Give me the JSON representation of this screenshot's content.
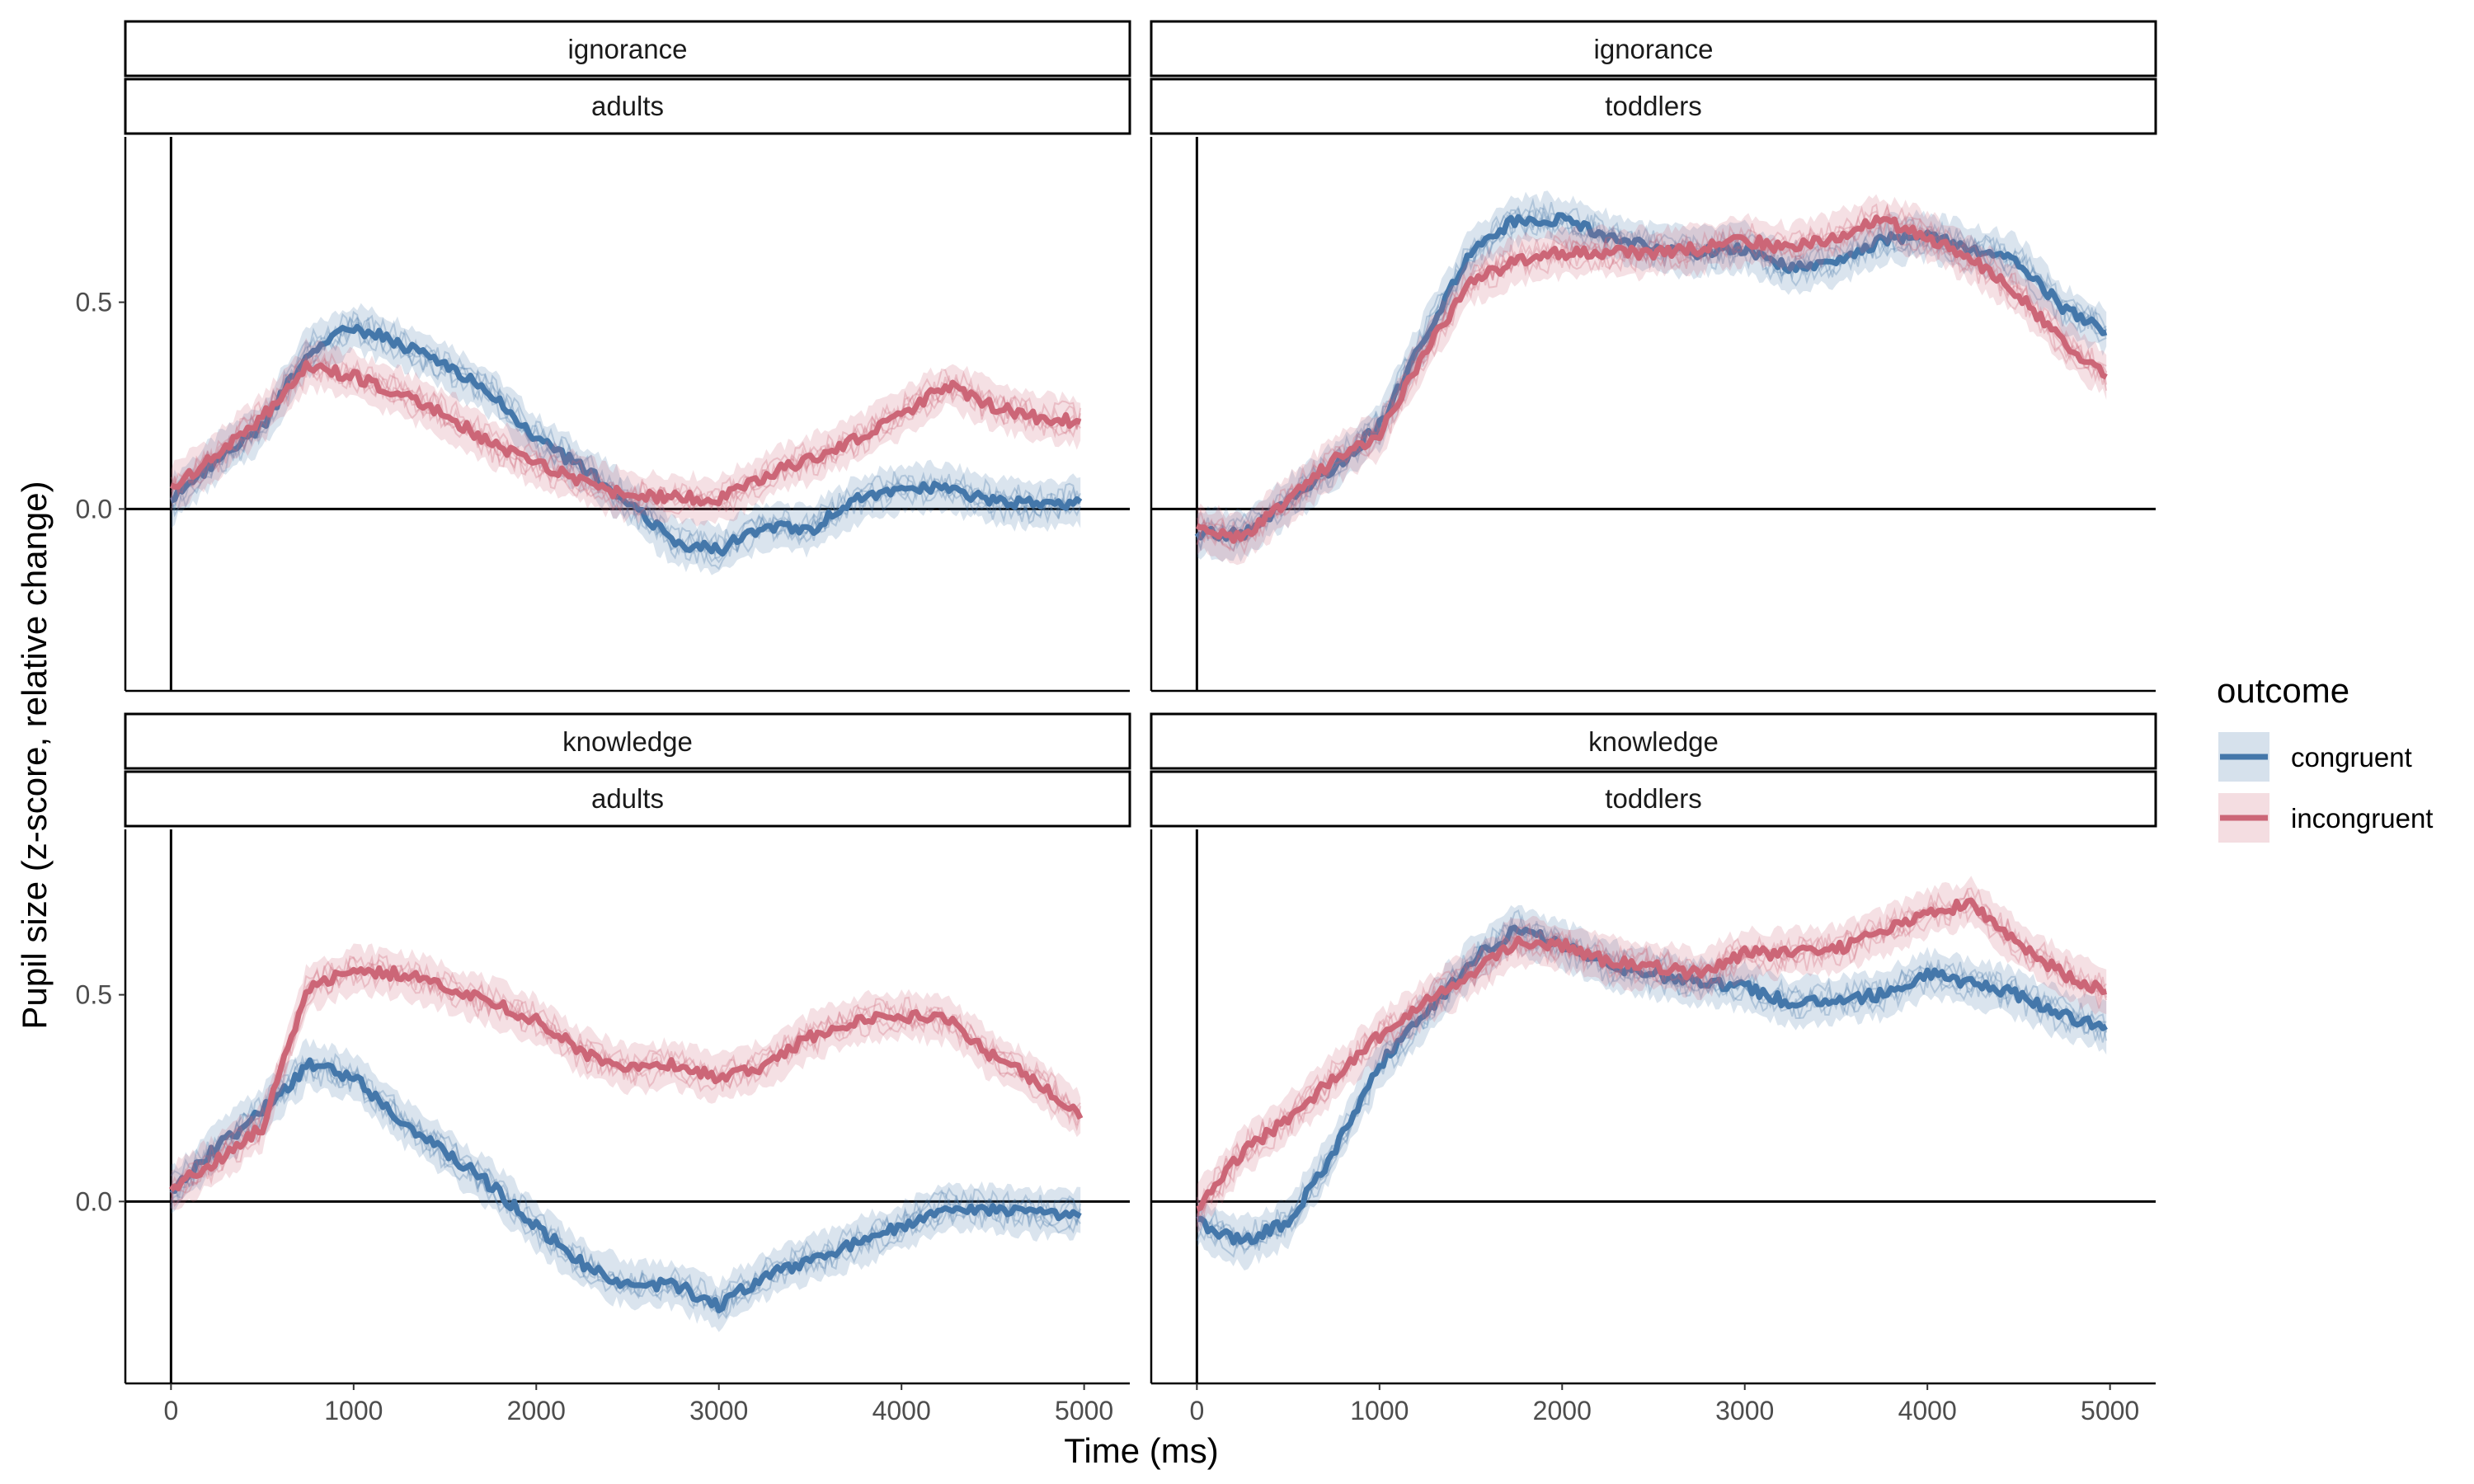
{
  "colors": {
    "congruent": "#4477aa",
    "incongruent": "#cc6677"
  },
  "chart_data": {
    "type": "line",
    "xlabel": "Time (ms)",
    "ylabel": "Pupil size (z-score, relative change)",
    "xlim": [
      -250,
      5250
    ],
    "ylim": [
      -0.44,
      0.9
    ],
    "x_ticks": [
      0,
      1000,
      2000,
      3000,
      4000,
      5000
    ],
    "x_tick_labels": [
      "0",
      "1000",
      "2000",
      "3000",
      "4000",
      "5000"
    ],
    "y_ticks": [
      0.0,
      0.5
    ],
    "y_tick_labels": [
      "0.0",
      "0.5"
    ],
    "reference_lines": {
      "y": 0,
      "x": 0
    },
    "grid": false,
    "legend": {
      "title": "outcome",
      "position": "right",
      "entries": [
        "congruent",
        "incongruent"
      ]
    },
    "x": [
      0,
      250,
      500,
      750,
      1000,
      1250,
      1500,
      1750,
      2000,
      2250,
      2500,
      2750,
      3000,
      3250,
      3500,
      3750,
      4000,
      4250,
      4500,
      4750,
      5000
    ],
    "panels": [
      {
        "strip_top": "ignorance",
        "strip_bottom": "adults",
        "series": [
          {
            "name": "congruent",
            "values": [
              0.02,
              0.12,
              0.2,
              0.38,
              0.44,
              0.4,
              0.35,
              0.28,
              0.17,
              0.1,
              0.02,
              -0.08,
              -0.1,
              -0.04,
              -0.05,
              0.02,
              0.05,
              0.05,
              0.02,
              0.01,
              0.02
            ]
          },
          {
            "name": "incongruent",
            "values": [
              0.05,
              0.13,
              0.22,
              0.35,
              0.32,
              0.28,
              0.23,
              0.16,
              0.11,
              0.07,
              0.03,
              0.03,
              0.02,
              0.08,
              0.12,
              0.17,
              0.23,
              0.3,
              0.25,
              0.22,
              0.21
            ]
          }
        ]
      },
      {
        "strip_top": "ignorance",
        "strip_bottom": "toddlers",
        "series": [
          {
            "name": "congruent",
            "values": [
              -0.06,
              -0.06,
              0.02,
              0.1,
              0.2,
              0.42,
              0.62,
              0.7,
              0.7,
              0.66,
              0.63,
              0.62,
              0.63,
              0.58,
              0.6,
              0.65,
              0.66,
              0.63,
              0.6,
              0.48,
              0.43
            ]
          },
          {
            "name": "incongruent",
            "values": [
              -0.05,
              -0.07,
              0.02,
              0.12,
              0.18,
              0.38,
              0.55,
              0.6,
              0.62,
              0.62,
              0.62,
              0.63,
              0.65,
              0.63,
              0.66,
              0.7,
              0.66,
              0.6,
              0.52,
              0.4,
              0.32
            ]
          }
        ]
      },
      {
        "strip_top": "knowledge",
        "strip_bottom": "adults",
        "series": [
          {
            "name": "congruent",
            "values": [
              0.02,
              0.13,
              0.22,
              0.33,
              0.3,
              0.2,
              0.12,
              0.04,
              -0.06,
              -0.15,
              -0.2,
              -0.2,
              -0.25,
              -0.18,
              -0.14,
              -0.1,
              -0.06,
              -0.01,
              -0.02,
              -0.03,
              -0.03
            ]
          },
          {
            "name": "incongruent",
            "values": [
              0.03,
              0.1,
              0.18,
              0.52,
              0.56,
              0.55,
              0.52,
              0.48,
              0.44,
              0.36,
              0.32,
              0.33,
              0.3,
              0.33,
              0.4,
              0.44,
              0.45,
              0.44,
              0.35,
              0.29,
              0.2
            ]
          }
        ]
      },
      {
        "strip_top": "knowledge",
        "strip_bottom": "toddlers",
        "series": [
          {
            "name": "congruent",
            "values": [
              -0.05,
              -0.1,
              -0.05,
              0.12,
              0.33,
              0.45,
              0.58,
              0.66,
              0.62,
              0.57,
              0.55,
              0.53,
              0.52,
              0.48,
              0.49,
              0.5,
              0.55,
              0.53,
              0.5,
              0.45,
              0.42
            ]
          },
          {
            "name": "incongruent",
            "values": [
              -0.02,
              0.12,
              0.2,
              0.3,
              0.4,
              0.48,
              0.55,
              0.63,
              0.62,
              0.58,
              0.57,
              0.55,
              0.6,
              0.6,
              0.61,
              0.65,
              0.7,
              0.72,
              0.62,
              0.55,
              0.5
            ]
          }
        ]
      }
    ]
  }
}
